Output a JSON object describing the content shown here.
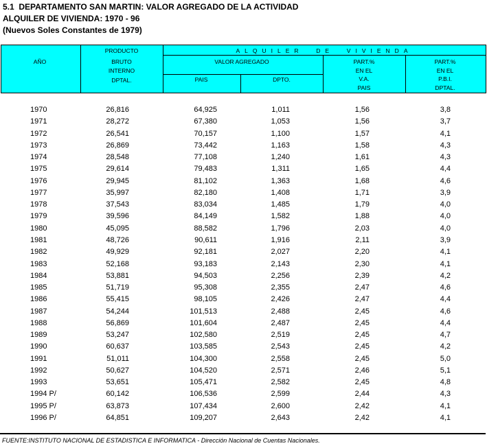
{
  "header": {
    "lines": [
      "5.1  DEPARTAMENTO SAN MARTIN: VALOR AGREGADO DE LA ACTIVIDAD",
      "ALQUILER DE VIVIENDA: 1970 - 96",
      "(Nuevos Soles Constantes de 1979)"
    ]
  },
  "table": {
    "columns": {
      "year": "AÑO",
      "pbi": [
        "PRODUCTO",
        "BRUTO",
        "INTERNO",
        "DPTAL."
      ],
      "group": "ALQUILER  DE  VIVIENDA",
      "valor": "VALOR AGREGADO",
      "pais": "PAIS",
      "dpto": "DPTO.",
      "part_va": [
        "PART.%",
        "EN EL",
        "V.A.",
        "PAIS"
      ],
      "part_pbi": [
        "PART.%",
        "EN EL",
        "P.B.I.",
        "DPTAL."
      ]
    },
    "rows": [
      [
        "1970",
        "26,816",
        "64,925",
        "1,011",
        "1,56",
        "3,8"
      ],
      [
        "1971",
        "28,272",
        "67,380",
        "1,053",
        "1,56",
        "3,7"
      ],
      [
        "1972",
        "26,541",
        "70,157",
        "1,100",
        "1,57",
        "4,1"
      ],
      [
        "1973",
        "26,869",
        "73,442",
        "1,163",
        "1,58",
        "4,3"
      ],
      [
        "1974",
        "28,548",
        "77,108",
        "1,240",
        "1,61",
        "4,3"
      ],
      [
        "1975",
        "29,614",
        "79,483",
        "1,311",
        "1,65",
        "4,4"
      ],
      [
        "1976",
        "29,945",
        "81,102",
        "1,363",
        "1,68",
        "4,6"
      ],
      [
        "1977",
        "35,997",
        "82,180",
        "1,408",
        "1,71",
        "3,9"
      ],
      [
        "1978",
        "37,543",
        "83,034",
        "1,485",
        "1,79",
        "4,0"
      ],
      [
        "1979",
        "39,596",
        "84,149",
        "1,582",
        "1,88",
        "4,0"
      ],
      [
        "1980",
        "45,095",
        "88,582",
        "1,796",
        "2,03",
        "4,0"
      ],
      [
        "1981",
        "48,726",
        "90,611",
        "1,916",
        "2,11",
        "3,9"
      ],
      [
        "1982",
        "49,929",
        "92,181",
        "2,027",
        "2,20",
        "4,1"
      ],
      [
        "1983",
        "52,168",
        "93,183",
        "2,143",
        "2,30",
        "4,1"
      ],
      [
        "1984",
        "53,881",
        "94,503",
        "2,256",
        "2,39",
        "4,2"
      ],
      [
        "1985",
        "51,719",
        "95,308",
        "2,355",
        "2,47",
        "4,6"
      ],
      [
        "1986",
        "55,415",
        "98,105",
        "2,426",
        "2,47",
        "4,4"
      ],
      [
        "1987",
        "54,244",
        "101,513",
        "2,488",
        "2,45",
        "4,6"
      ],
      [
        "1988",
        "56,869",
        "101,604",
        "2,487",
        "2,45",
        "4,4"
      ],
      [
        "1989",
        "53,247",
        "102,580",
        "2,519",
        "2,45",
        "4,7"
      ],
      [
        "1990",
        "60,637",
        "103,585",
        "2,543",
        "2,45",
        "4,2"
      ],
      [
        "1991",
        "51,011",
        "104,300",
        "2,558",
        "2,45",
        "5,0"
      ],
      [
        "1992",
        "50,627",
        "104,520",
        "2,571",
        "2,46",
        "5,1"
      ],
      [
        "1993",
        "53,651",
        "105,471",
        "2,582",
        "2,45",
        "4,8"
      ],
      [
        "1994 P/",
        "60,142",
        "106,536",
        "2,599",
        "2,44",
        "4,3"
      ],
      [
        "1995 P/",
        "63,873",
        "107,434",
        "2,600",
        "2,42",
        "4,1"
      ],
      [
        "1996 P/",
        "64,851",
        "109,207",
        "2,643",
        "2,42",
        "4,1"
      ]
    ]
  },
  "footer": "FUENTE:INSTITUTO NACIONAL DE ESTADISTICA E INFORMATICA - Dirección Nacional de Cuentas Nacionales."
}
